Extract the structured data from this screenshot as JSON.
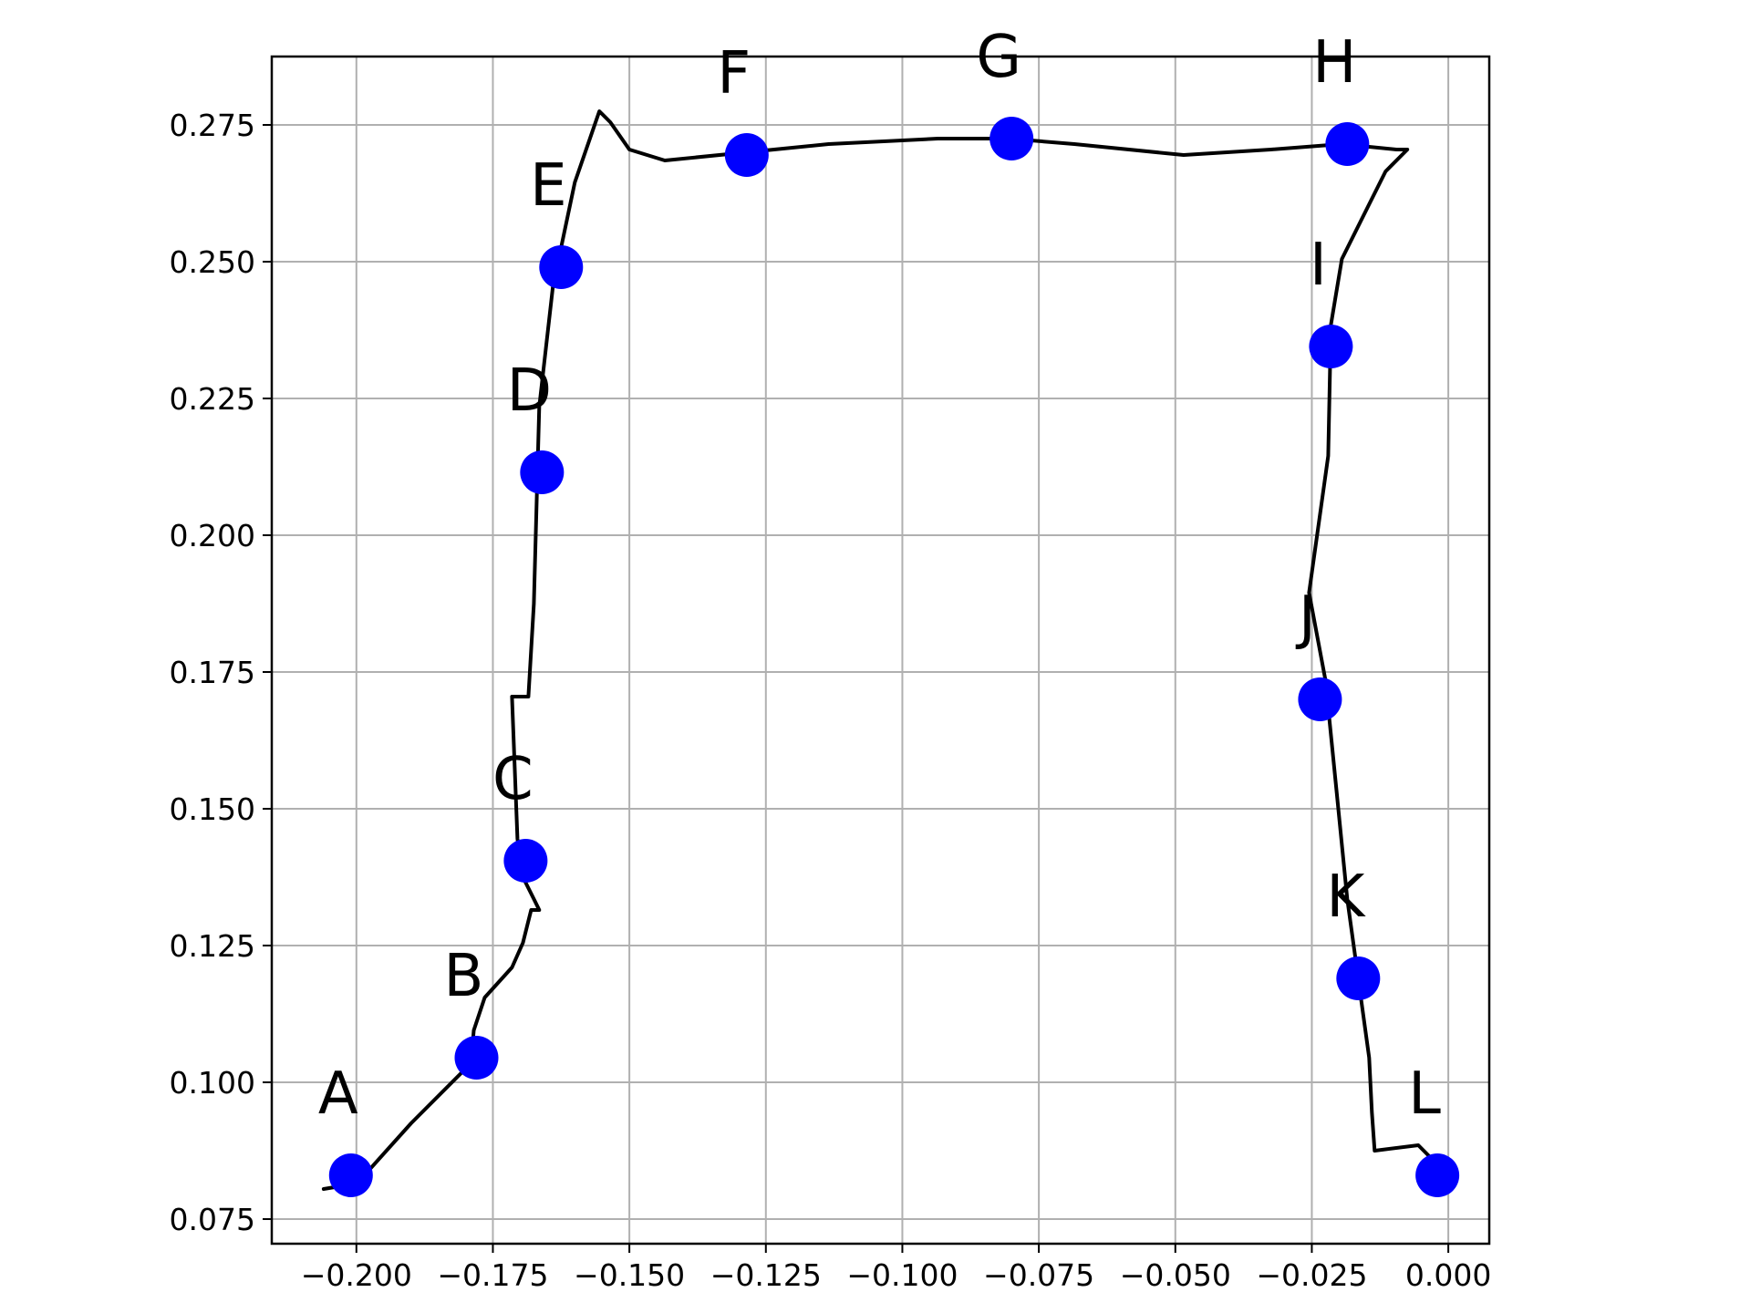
{
  "chart_data": {
    "type": "scatter",
    "title": "",
    "xlabel": "",
    "ylabel": "",
    "xlim": [
      -0.2155,
      0.0075
    ],
    "ylim": [
      0.0705,
      0.2875
    ],
    "grid": true,
    "x_ticks": [
      -0.2,
      -0.175,
      -0.15,
      -0.125,
      -0.1,
      -0.075,
      -0.05,
      -0.025,
      0.0
    ],
    "x_tick_labels": [
      "−0.200",
      "−0.175",
      "−0.150",
      "−0.125",
      "−0.100",
      "−0.075",
      "−0.050",
      "−0.025",
      "0.000"
    ],
    "y_ticks": [
      0.075,
      0.1,
      0.125,
      0.15,
      0.175,
      0.2,
      0.225,
      0.25,
      0.275
    ],
    "y_tick_labels": [
      "0.075",
      "0.100",
      "0.125",
      "0.150",
      "0.175",
      "0.200",
      "0.225",
      "0.250",
      "0.275"
    ],
    "points": [
      {
        "label": "A",
        "x": -0.201,
        "y": 0.083
      },
      {
        "label": "B",
        "x": -0.178,
        "y": 0.1045
      },
      {
        "label": "C",
        "x": -0.169,
        "y": 0.1405
      },
      {
        "label": "D",
        "x": -0.166,
        "y": 0.2115
      },
      {
        "label": "E",
        "x": -0.1625,
        "y": 0.249
      },
      {
        "label": "F",
        "x": -0.1285,
        "y": 0.2695
      },
      {
        "label": "G",
        "x": -0.08,
        "y": 0.2725
      },
      {
        "label": "H",
        "x": -0.0185,
        "y": 0.2715
      },
      {
        "label": "I",
        "x": -0.0215,
        "y": 0.2345
      },
      {
        "label": "J",
        "x": -0.0235,
        "y": 0.17
      },
      {
        "label": "K",
        "x": -0.0165,
        "y": 0.119
      },
      {
        "label": "L",
        "x": -0.002,
        "y": 0.083
      }
    ],
    "trajectory": {
      "x": [
        -0.206,
        -0.203,
        -0.199,
        -0.19,
        -0.179,
        -0.1785,
        -0.1765,
        -0.1715,
        -0.1695,
        -0.168,
        -0.1665,
        -0.1675,
        -0.1695,
        -0.1705,
        -0.1715,
        -0.1685,
        -0.1675,
        -0.1665,
        -0.164,
        -0.16,
        -0.1555,
        -0.1535,
        -0.15,
        -0.1435,
        -0.1135,
        -0.0935,
        -0.0805,
        -0.0685,
        -0.0485,
        -0.0325,
        -0.0195,
        -0.0095,
        -0.0075,
        -0.0085,
        -0.0115,
        -0.0145,
        -0.0195,
        -0.0215,
        -0.022,
        -0.0255,
        -0.0225,
        -0.0205,
        -0.0185,
        -0.0145,
        -0.014,
        -0.0135,
        -0.0055,
        -0.0035,
        -0.004,
        -0.0025,
        -0.002
      ],
      "y": [
        0.0805,
        0.081,
        0.0825,
        0.0925,
        0.1035,
        0.1095,
        0.1155,
        0.121,
        0.1255,
        0.1315,
        0.1315,
        0.1335,
        0.1375,
        0.1445,
        0.1705,
        0.1705,
        0.1875,
        0.2235,
        0.2455,
        0.2645,
        0.2775,
        0.2755,
        0.2705,
        0.2685,
        0.2715,
        0.2725,
        0.2725,
        0.2715,
        0.2695,
        0.2705,
        0.2715,
        0.2705,
        0.2705,
        0.2695,
        0.2665,
        0.2605,
        0.2505,
        0.2385,
        0.2145,
        0.1895,
        0.1735,
        0.1535,
        0.1335,
        0.1045,
        0.0945,
        0.0875,
        0.0885,
        0.0865,
        0.0845,
        0.0835,
        0.0825
      ]
    },
    "colors": {
      "points": "#0000ff",
      "trajectory": "#000000",
      "grid": "#b0b0b0",
      "axes": "#000000"
    }
  }
}
